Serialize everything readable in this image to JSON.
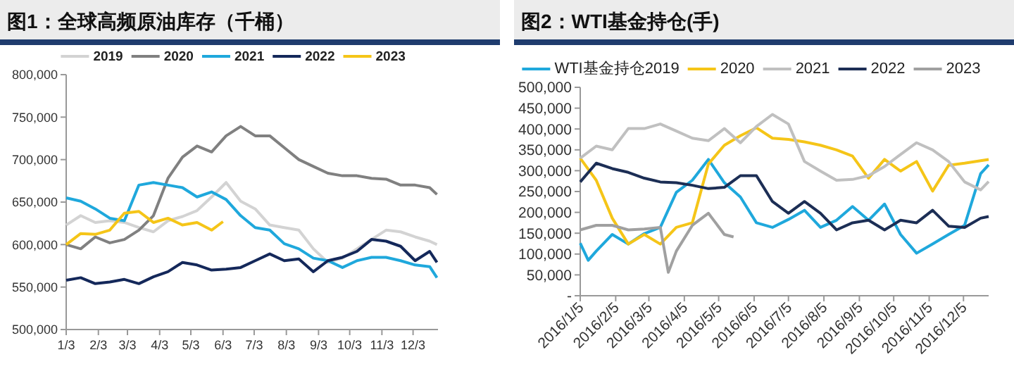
{
  "chart_data": [
    {
      "type": "line",
      "title": "图1：全球高频原油库存（千桶）",
      "legend": "top",
      "x": [
        "--01-03",
        "--01-17",
        "--01-31",
        "--02-14",
        "--02-28",
        "--03-14",
        "--03-28",
        "--04-11",
        "--04-25",
        "--05-09",
        "--05-23",
        "--06-06",
        "--06-20",
        "--07-04",
        "--07-18",
        "--08-01",
        "--08-15",
        "--08-29",
        "--09-12",
        "--09-26",
        "--10-10",
        "--10-24",
        "--11-07",
        "--11-21",
        "--12-05",
        "--12-19",
        "--12-26"
      ],
      "xlim": [
        "--01-03",
        "--12-27"
      ],
      "xticks": [
        {
          "value": "--01-03",
          "label": "1/3"
        },
        {
          "value": "--02-03",
          "label": "2/3"
        },
        {
          "value": "--03-03",
          "label": "3/3"
        },
        {
          "value": "--04-03",
          "label": "4/3"
        },
        {
          "value": "--05-03",
          "label": "5/3"
        },
        {
          "value": "--06-03",
          "label": "6/3"
        },
        {
          "value": "--07-03",
          "label": "7/3"
        },
        {
          "value": "--08-03",
          "label": "8/3"
        },
        {
          "value": "--09-03",
          "label": "9/3"
        },
        {
          "value": "--10-03",
          "label": "10/3"
        },
        {
          "value": "--11-03",
          "label": "11/3"
        },
        {
          "value": "--12-03",
          "label": "12/3"
        }
      ],
      "ylim": [
        500000,
        800000
      ],
      "yticks": [
        {
          "value": 500000,
          "label": "500,000"
        },
        {
          "value": 550000,
          "label": "550,000"
        },
        {
          "value": 600000,
          "label": "600,000"
        },
        {
          "value": 650000,
          "label": "650,000"
        },
        {
          "value": 700000,
          "label": "700,000"
        },
        {
          "value": 750000,
          "label": "750,000"
        },
        {
          "value": 800000,
          "label": "800,000"
        }
      ],
      "series": [
        {
          "name": "2019",
          "color": "#d3d3d3",
          "values": [
            623000,
            634000,
            626000,
            628000,
            626000,
            620000,
            615000,
            628000,
            633000,
            640000,
            656000,
            673000,
            651000,
            642000,
            623000,
            620000,
            617000,
            595000,
            579000,
            584000,
            595000,
            606000,
            617000,
            615000,
            609000,
            604000,
            600000
          ]
        },
        {
          "name": "2020",
          "color": "#808080",
          "values": [
            600000,
            595000,
            609000,
            602000,
            606000,
            617000,
            634000,
            678000,
            703000,
            716000,
            709000,
            728000,
            739000,
            728000,
            728000,
            714000,
            700000,
            692000,
            684000,
            681000,
            681000,
            678000,
            677000,
            670000,
            670000,
            667000,
            659000
          ]
        },
        {
          "name": "2021",
          "color": "#1fa8dc",
          "values": [
            655000,
            651000,
            642000,
            631000,
            628000,
            670000,
            673000,
            670000,
            667000,
            656000,
            662000,
            653000,
            634000,
            620000,
            617000,
            601000,
            595000,
            584000,
            581000,
            573000,
            581000,
            585000,
            585000,
            581000,
            576000,
            574000,
            561000
          ]
        },
        {
          "name": "2022",
          "color": "#14285a",
          "values": [
            558000,
            561000,
            554000,
            556000,
            559000,
            554000,
            562000,
            568000,
            579000,
            576000,
            570000,
            571000,
            573000,
            581000,
            589000,
            581000,
            583000,
            568000,
            581000,
            585000,
            592000,
            606000,
            604000,
            598000,
            581000,
            592000,
            579000
          ]
        },
        {
          "name": "2023",
          "color": "#f5c518",
          "x": [
            "--01-03",
            "--01-17",
            "--01-31",
            "--02-14",
            "--02-28",
            "--03-14",
            "--03-28",
            "--04-11",
            "--04-25",
            "--05-09",
            "--05-23",
            "--06-03"
          ],
          "values": [
            600000,
            613000,
            612000,
            617000,
            637000,
            639000,
            626000,
            631000,
            623000,
            626000,
            617000,
            627000
          ]
        }
      ]
    },
    {
      "type": "line",
      "title": "图2：WTI基金持仓(手)",
      "legend": "top",
      "x": [
        "2016-01-05",
        "2016-01-19",
        "2016-02-02",
        "2016-02-16",
        "2016-03-01",
        "2016-03-15",
        "2016-03-29",
        "2016-04-12",
        "2016-04-26",
        "2016-05-10",
        "2016-05-24",
        "2016-06-07",
        "2016-06-21",
        "2016-07-05",
        "2016-07-19",
        "2016-08-02",
        "2016-08-16",
        "2016-08-30",
        "2016-09-13",
        "2016-09-27",
        "2016-10-11",
        "2016-10-25",
        "2016-11-08",
        "2016-11-22",
        "2016-12-06",
        "2016-12-20",
        "2016-12-27"
      ],
      "xlim": [
        "2016-01-05",
        "2016-12-27"
      ],
      "xticks": [
        {
          "value": "2016-01-05",
          "label": "2016/1/5"
        },
        {
          "value": "2016-02-05",
          "label": "2016/2/5"
        },
        {
          "value": "2016-03-05",
          "label": "2016/3/5"
        },
        {
          "value": "2016-04-05",
          "label": "2016/4/5"
        },
        {
          "value": "2016-05-05",
          "label": "2016/5/5"
        },
        {
          "value": "2016-06-05",
          "label": "2016/6/5"
        },
        {
          "value": "2016-07-05",
          "label": "2016/7/5"
        },
        {
          "value": "2016-08-05",
          "label": "2016/8/5"
        },
        {
          "value": "2016-09-05",
          "label": "2016/9/5"
        },
        {
          "value": "2016-10-05",
          "label": "2016/10/5"
        },
        {
          "value": "2016-11-05",
          "label": "2016/11/5"
        },
        {
          "value": "2016-12-05",
          "label": "2016/12/5"
        }
      ],
      "ylim": [
        0,
        500000
      ],
      "yticks": [
        {
          "value": 0,
          "label": "-"
        },
        {
          "value": 50000,
          "label": "50,000"
        },
        {
          "value": 100000,
          "label": "100,000"
        },
        {
          "value": 150000,
          "label": "150,000"
        },
        {
          "value": 200000,
          "label": "200,000"
        },
        {
          "value": 250000,
          "label": "250,000"
        },
        {
          "value": 300000,
          "label": "300,000"
        },
        {
          "value": 350000,
          "label": "350,000"
        },
        {
          "value": 400000,
          "label": "400,000"
        },
        {
          "value": 450000,
          "label": "450,000"
        },
        {
          "value": 500000,
          "label": "500,000"
        }
      ],
      "series": [
        {
          "name": "WTI基金持仓2019",
          "color": "#1fa8dc",
          "x": [
            "2016-01-05",
            "2016-01-12",
            "2016-01-19",
            "2016-02-02",
            "2016-02-16",
            "2016-03-01",
            "2016-03-15",
            "2016-03-29",
            "2016-04-12",
            "2016-04-26",
            "2016-05-10",
            "2016-05-24",
            "2016-06-07",
            "2016-06-21",
            "2016-07-05",
            "2016-07-19",
            "2016-08-02",
            "2016-08-16",
            "2016-08-30",
            "2016-09-13",
            "2016-09-27",
            "2016-10-11",
            "2016-10-25",
            "2016-11-08",
            "2016-11-22",
            "2016-12-06",
            "2016-12-20",
            "2016-12-27"
          ],
          "values": [
            126000,
            85000,
            107000,
            147000,
            124000,
            149000,
            164000,
            248000,
            277000,
            327000,
            271000,
            237000,
            175000,
            164000,
            183000,
            205000,
            164000,
            181000,
            214000,
            181000,
            220000,
            147000,
            102000,
            124000,
            147000,
            169000,
            293000,
            314000
          ]
        },
        {
          "name": "2020",
          "color": "#f5c518",
          "values": [
            330000,
            277000,
            186000,
            124000,
            147000,
            124000,
            164000,
            175000,
            316000,
            361000,
            384000,
            403000,
            378000,
            375000,
            369000,
            361000,
            350000,
            335000,
            282000,
            327000,
            299000,
            322000,
            251000,
            313000,
            318000,
            324000,
            327000
          ]
        },
        {
          "name": "2021",
          "color": "#c0c0c0",
          "values": [
            330000,
            359000,
            350000,
            401000,
            401000,
            412000,
            395000,
            378000,
            372000,
            401000,
            367000,
            406000,
            435000,
            412000,
            322000,
            299000,
            277000,
            279000,
            288000,
            310000,
            339000,
            367000,
            350000,
            322000,
            273000,
            254000,
            274000
          ]
        },
        {
          "name": "2022",
          "color": "#1c2e55",
          "values": [
            273000,
            318000,
            305000,
            296000,
            282000,
            273000,
            271000,
            265000,
            257000,
            260000,
            288000,
            288000,
            226000,
            198000,
            226000,
            198000,
            158000,
            175000,
            181000,
            158000,
            181000,
            175000,
            205000,
            167000,
            164000,
            186000,
            190000
          ]
        },
        {
          "name": "2023",
          "color": "#a0a0a0",
          "x": [
            "2016-01-05",
            "2016-01-19",
            "2016-02-02",
            "2016-02-16",
            "2016-03-01",
            "2016-03-15",
            "2016-03-22",
            "2016-03-29",
            "2016-04-12",
            "2016-04-26",
            "2016-05-10",
            "2016-05-18"
          ],
          "values": [
            158000,
            169000,
            169000,
            158000,
            160000,
            164000,
            56000,
            107000,
            169000,
            198000,
            147000,
            141000
          ]
        }
      ]
    }
  ]
}
